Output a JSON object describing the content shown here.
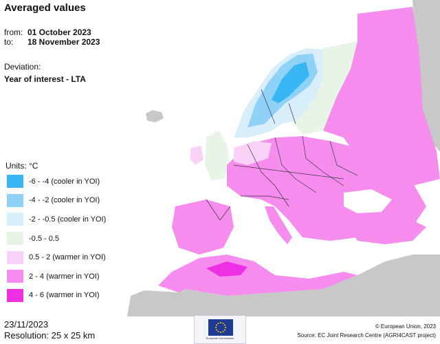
{
  "header": {
    "title": "Averaged values",
    "from_label": "from:",
    "from_value": "01 October 2023",
    "to_label": "to:",
    "to_value": "18 November 2023",
    "deviation_label": "Deviation:",
    "deviation_value": "Year of interest - LTA"
  },
  "legend": {
    "units": "Units: °C",
    "items": [
      {
        "label": "-6 - -4 (cooler in YOI)",
        "color": "#38b6f4"
      },
      {
        "label": "-4 - -2 (cooler in YOI)",
        "color": "#8fd1f7"
      },
      {
        "label": "-2 - -0.5 (cooler in YOI)",
        "color": "#d9eefb"
      },
      {
        "label": "-0.5 - 0.5",
        "color": "#e8f4e6"
      },
      {
        "label": "0.5 - 2 (warmer in YOI)",
        "color": "#fbd2f7"
      },
      {
        "label": "2 - 4 (warmer in YOI)",
        "color": "#f58cee"
      },
      {
        "label": "4 - 6 (warmer in YOI)",
        "color": "#ee2fe4"
      }
    ]
  },
  "footer": {
    "date": "23/11/2023",
    "resolution": "Resolution: 25 x 25 km",
    "copyright": "© European Union, 2023",
    "source": "Source: EC Joint Research Centre (AGRI4CAST project)",
    "logo_text": "European Commission"
  },
  "map_colors": {
    "sea": "#ffffff",
    "no_data": "#c8c8c8",
    "border": "#3a3a3a"
  }
}
